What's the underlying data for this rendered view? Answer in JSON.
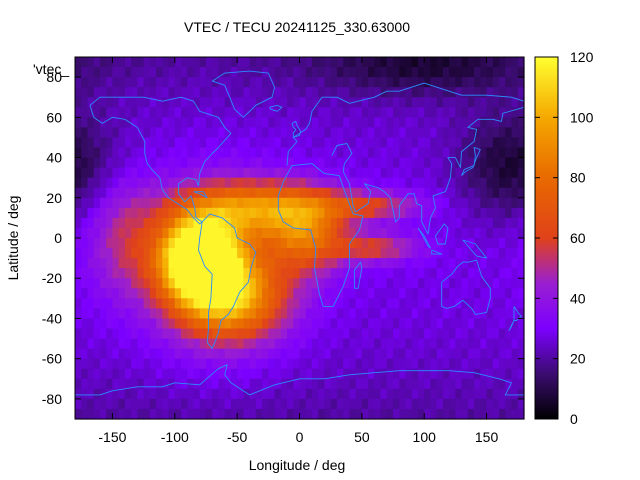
{
  "chart_data": {
    "type": "heatmap",
    "title": "VTEC / TECU 20241125_330.63000",
    "xlabel": "Longitude / deg",
    "ylabel": "Latitude / deg",
    "xlim": [
      -180,
      180
    ],
    "ylim": [
      -90,
      90
    ],
    "x_ticks": [
      -150,
      -100,
      -50,
      0,
      50,
      100,
      150
    ],
    "y_ticks": [
      -80,
      -60,
      -40,
      -20,
      0,
      20,
      40,
      60,
      80
    ],
    "x_tick_labels": [
      "-150",
      "-100",
      "-50",
      "0",
      "50",
      "100",
      "150"
    ],
    "y_tick_labels": [
      "-80",
      "-60",
      "-40",
      "-20",
      "0",
      "20",
      "40",
      "60",
      "80"
    ],
    "colorbar": {
      "range": [
        0,
        120
      ],
      "ticks": [
        0,
        20,
        40,
        60,
        80,
        100,
        120
      ],
      "tick_labels": [
        "0",
        "20",
        "40",
        "60",
        "80",
        "100",
        "120"
      ],
      "stops": [
        {
          "v": 0,
          "color": "#000000"
        },
        {
          "v": 15,
          "color": "#3b0c70"
        },
        {
          "v": 30,
          "color": "#7c00ff"
        },
        {
          "v": 45,
          "color": "#9a1fd0"
        },
        {
          "v": 60,
          "color": "#e0421a"
        },
        {
          "v": 80,
          "color": "#e86a00"
        },
        {
          "v": 100,
          "color": "#f5a800"
        },
        {
          "v": 120,
          "color": "#ffff30"
        }
      ]
    },
    "legend": "'vtec_",
    "grid_step_deg": 5,
    "background_tecu": 28,
    "features": [
      {
        "name": "south-america-peak",
        "lon": -80,
        "lat": -10,
        "peak": 115,
        "sx": 22,
        "sy": 14
      },
      {
        "name": "south-american-crest",
        "lon": -65,
        "lat": -15,
        "peak": 25,
        "sx": 40,
        "sy": 30
      },
      {
        "name": "northern-anomaly-crest",
        "lon": -35,
        "lat": 15,
        "peak": 52,
        "sx": 40,
        "sy": 9
      },
      {
        "name": "atlantic-southern-band",
        "lon": -55,
        "lat": -30,
        "peak": 58,
        "sx": 30,
        "sy": 14
      },
      {
        "name": "africa-equatorial",
        "lon": 5,
        "lat": 2,
        "peak": 48,
        "sx": 22,
        "sy": 13
      },
      {
        "name": "east-tongue-north",
        "lon": 55,
        "lat": 16,
        "peak": 30,
        "sx": 30,
        "sy": 5
      },
      {
        "name": "east-tongue-south",
        "lon": 60,
        "lat": -5,
        "peak": 30,
        "sx": 24,
        "sy": 5
      },
      {
        "name": "pacific-west-bulge",
        "lon": -140,
        "lat": 0,
        "peak": 22,
        "sx": 20,
        "sy": 20
      }
    ],
    "lows": [
      {
        "name": "north-pacific-night",
        "lon": 170,
        "lat": 35,
        "depth": 20,
        "sx": 30,
        "sy": 18
      },
      {
        "name": "eurasian-arctic-night",
        "lon": 100,
        "lat": 85,
        "depth": 14,
        "sx": 60,
        "sy": 10
      }
    ]
  }
}
